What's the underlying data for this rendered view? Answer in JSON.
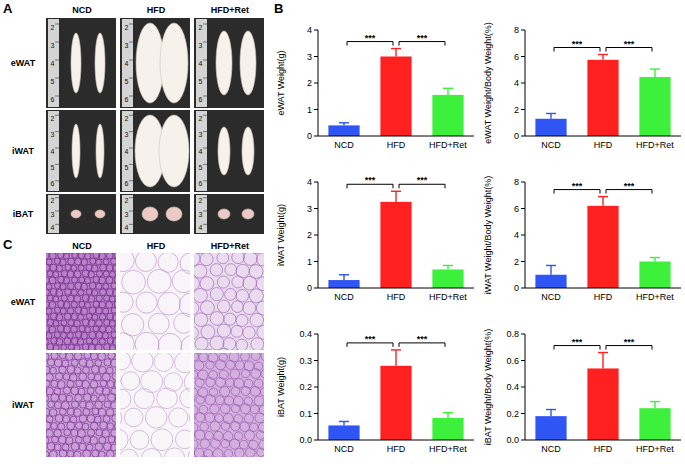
{
  "panel_labels": [
    "A",
    "B",
    "C"
  ],
  "photo_panel": {
    "columns": [
      "NCD",
      "HFD",
      "HFD+Ret"
    ],
    "rows": [
      {
        "label": "eWAT",
        "ruler_labels": [
          "2",
          "3",
          "4",
          "5",
          "6"
        ]
      },
      {
        "label": "iWAT",
        "ruler_labels": [
          "2",
          "3",
          "4",
          "5",
          "6"
        ]
      },
      {
        "label": "iBAT",
        "ruler_labels": [
          "2",
          "3",
          "4"
        ]
      }
    ]
  },
  "histology_panel": {
    "columns": [
      "NCD",
      "HFD",
      "HFD+Ret"
    ],
    "rows": [
      "eWAT",
      "iWAT"
    ]
  },
  "chart_data": [
    {
      "type": "bar",
      "y_label": "eWAT Weight(g)",
      "categories": [
        "NCD",
        "HFD",
        "HFD+Ret"
      ],
      "values": [
        0.4,
        3.0,
        1.55
      ],
      "errors": [
        0.1,
        0.3,
        0.25
      ],
      "colors": [
        "#2f55f5",
        "#ff2020",
        "#3cf03c"
      ],
      "ylim": [
        0,
        4
      ],
      "yticks": [
        0,
        1,
        2,
        3,
        4
      ],
      "significance": [
        {
          "pair": [
            "NCD",
            "HFD"
          ],
          "label": "***"
        },
        {
          "pair": [
            "HFD",
            "HFD+Ret"
          ],
          "label": "***"
        }
      ]
    },
    {
      "type": "bar",
      "y_label": "eWAT Weight/Body Weight(%)",
      "categories": [
        "NCD",
        "HFD",
        "HFD+Ret"
      ],
      "values": [
        1.3,
        5.75,
        4.45
      ],
      "errors": [
        0.4,
        0.4,
        0.6
      ],
      "colors": [
        "#2f55f5",
        "#ff2020",
        "#3cf03c"
      ],
      "ylim": [
        0,
        8
      ],
      "yticks": [
        0,
        2,
        4,
        6,
        8
      ],
      "significance": [
        {
          "pair": [
            "NCD",
            "HFD"
          ],
          "label": "***"
        },
        {
          "pair": [
            "HFD",
            "HFD+Ret"
          ],
          "label": "***"
        }
      ]
    },
    {
      "type": "bar",
      "y_label": "iWAT Weight(g)",
      "categories": [
        "NCD",
        "HFD",
        "HFD+Ret"
      ],
      "values": [
        0.3,
        3.25,
        0.7
      ],
      "errors": [
        0.2,
        0.4,
        0.15
      ],
      "colors": [
        "#2f55f5",
        "#ff2020",
        "#3cf03c"
      ],
      "ylim": [
        0,
        4
      ],
      "yticks": [
        0,
        1,
        2,
        3,
        4
      ],
      "significance": [
        {
          "pair": [
            "NCD",
            "HFD"
          ],
          "label": "***"
        },
        {
          "pair": [
            "HFD",
            "HFD+Ret"
          ],
          "label": "***"
        }
      ]
    },
    {
      "type": "bar",
      "y_label": "iWAT Weight/Body Weight(%)",
      "categories": [
        "NCD",
        "HFD",
        "HFD+Ret"
      ],
      "values": [
        1.0,
        6.2,
        2.0
      ],
      "errors": [
        0.7,
        0.7,
        0.3
      ],
      "colors": [
        "#2f55f5",
        "#ff2020",
        "#3cf03c"
      ],
      "ylim": [
        0,
        8
      ],
      "yticks": [
        0,
        2,
        4,
        6,
        8
      ],
      "significance": [
        {
          "pair": [
            "NCD",
            "HFD"
          ],
          "label": "***"
        },
        {
          "pair": [
            "HFD",
            "HFD+Ret"
          ],
          "label": "***"
        }
      ]
    },
    {
      "type": "bar",
      "y_label": "iBAT Weight(g)",
      "categories": [
        "NCD",
        "HFD",
        "HFD+Ret"
      ],
      "values": [
        0.055,
        0.28,
        0.083
      ],
      "errors": [
        0.015,
        0.06,
        0.02
      ],
      "colors": [
        "#2f55f5",
        "#ff2020",
        "#3cf03c"
      ],
      "ylim": [
        0,
        0.4
      ],
      "yticks": [
        {
          "value": 0,
          "label": "0.0"
        },
        0.1,
        0.2,
        0.3,
        0.4
      ],
      "significance": [
        {
          "pair": [
            "NCD",
            "HFD"
          ],
          "label": "***"
        },
        {
          "pair": [
            "HFD",
            "HFD+Ret"
          ],
          "label": "***"
        }
      ]
    },
    {
      "type": "bar",
      "y_label": "iBAT Weight/Body Weight(%)",
      "categories": [
        "NCD",
        "HFD",
        "HFD+Ret"
      ],
      "values": [
        0.18,
        0.54,
        0.24
      ],
      "errors": [
        0.05,
        0.12,
        0.05
      ],
      "colors": [
        "#2f55f5",
        "#ff2020",
        "#3cf03c"
      ],
      "ylim": [
        0,
        0.8
      ],
      "yticks": [
        {
          "value": 0,
          "label": "0.0"
        },
        0.2,
        0.4,
        0.6,
        0.8
      ],
      "significance": [
        {
          "pair": [
            "NCD",
            "HFD"
          ],
          "label": "***"
        },
        {
          "pair": [
            "HFD",
            "HFD+Ret"
          ],
          "label": "***"
        }
      ]
    }
  ]
}
